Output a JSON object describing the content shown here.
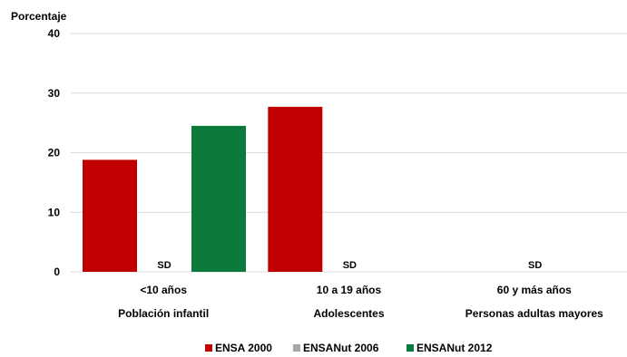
{
  "chart_data": {
    "type": "bar",
    "ylabel": "Porcentaje",
    "ylim": [
      0,
      40
    ],
    "yticks": [
      0,
      10,
      20,
      30,
      40
    ],
    "grid": true,
    "legend_position": "bottom",
    "categories": [
      {
        "label": "<10 años",
        "group": "Población infantil"
      },
      {
        "label": "10 a 19 años",
        "group": "Adolescentes"
      },
      {
        "label": "60 y más años",
        "group": "Personas adultas mayores"
      }
    ],
    "series": [
      {
        "name": "ENSA 2000",
        "color": "#c00000",
        "values": [
          18.8,
          27.7,
          null
        ]
      },
      {
        "name": "ENSANut 2006",
        "color": "#a6a6a6",
        "values": [
          null,
          null,
          null
        ]
      },
      {
        "name": "ENSANut 2012",
        "color": "#0b7a3b",
        "values": [
          24.5,
          null,
          null
        ]
      }
    ],
    "missing_label": "SD",
    "missing_marks": [
      {
        "category": 0,
        "series": 1
      },
      {
        "category": 1,
        "series": 1
      },
      {
        "category": 2,
        "series": 1
      }
    ]
  }
}
